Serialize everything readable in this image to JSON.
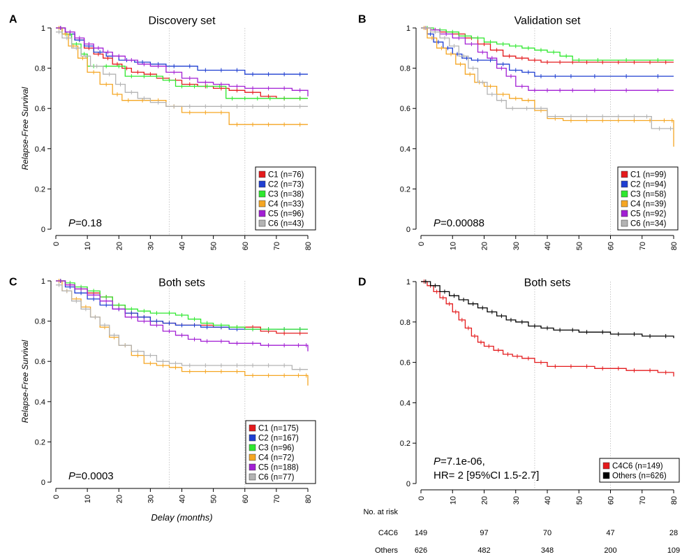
{
  "chart_data": [
    {
      "type": "line",
      "panel_label": "A",
      "title": "Discovery set",
      "ylabel": "Relapse-Free Survival",
      "xlabel": "",
      "xlim": [
        0,
        80
      ],
      "ylim": [
        0,
        1
      ],
      "x_ticks": [
        0,
        10,
        20,
        30,
        40,
        50,
        60,
        70,
        80
      ],
      "y_ticks": [
        "0",
        "0.2",
        "0.4",
        "0.6",
        "0.8",
        "1"
      ],
      "reference_lines_x": [
        36,
        60
      ],
      "pvalue_prefix": "P",
      "pvalue_text": "=0.18",
      "hr_text": "",
      "legend_position": "bottom-right",
      "series": [
        {
          "name": "C1 (n=76)",
          "color": "#e41a1c",
          "x": [
            0,
            3,
            6,
            9,
            12,
            15,
            18,
            21,
            24,
            28,
            32,
            36,
            40,
            45,
            50,
            55,
            60,
            65,
            70,
            75,
            80
          ],
          "y": [
            1,
            0.97,
            0.94,
            0.9,
            0.87,
            0.85,
            0.82,
            0.8,
            0.78,
            0.77,
            0.75,
            0.74,
            0.72,
            0.71,
            0.7,
            0.69,
            0.68,
            0.66,
            0.65,
            0.65,
            0.65
          ]
        },
        {
          "name": "C2 (n=73)",
          "color": "#1f3fd1",
          "x": [
            0,
            3,
            6,
            9,
            12,
            16,
            20,
            25,
            30,
            35,
            40,
            45,
            50,
            55,
            60,
            65,
            70,
            75,
            80
          ],
          "y": [
            1,
            0.97,
            0.94,
            0.91,
            0.88,
            0.86,
            0.84,
            0.83,
            0.82,
            0.81,
            0.81,
            0.79,
            0.79,
            0.79,
            0.77,
            0.77,
            0.77,
            0.77,
            0.77
          ]
        },
        {
          "name": "C3 (n=38)",
          "color": "#2ee82e",
          "x": [
            0,
            2,
            5,
            8,
            10,
            14,
            18,
            22,
            26,
            30,
            34,
            38,
            42,
            46,
            50,
            54,
            58,
            62,
            66,
            70,
            75,
            80
          ],
          "y": [
            1,
            0.97,
            0.92,
            0.87,
            0.81,
            0.81,
            0.81,
            0.76,
            0.76,
            0.76,
            0.74,
            0.71,
            0.71,
            0.71,
            0.71,
            0.65,
            0.65,
            0.65,
            0.65,
            0.65,
            0.65,
            0.65
          ]
        },
        {
          "name": "C4 (n=33)",
          "color": "#f5a623",
          "x": [
            0,
            2,
            4,
            7,
            10,
            14,
            18,
            21,
            25,
            30,
            35,
            40,
            45,
            50,
            55,
            60,
            65,
            70,
            75,
            80
          ],
          "y": [
            1,
            0.97,
            0.91,
            0.85,
            0.78,
            0.72,
            0.67,
            0.64,
            0.64,
            0.64,
            0.61,
            0.58,
            0.58,
            0.58,
            0.52,
            0.52,
            0.52,
            0.52,
            0.52,
            0.52
          ]
        },
        {
          "name": "C5 (n=96)",
          "color": "#a21fd4",
          "x": [
            0,
            3,
            6,
            9,
            12,
            15,
            18,
            22,
            26,
            30,
            35,
            40,
            45,
            50,
            55,
            60,
            65,
            70,
            75,
            80
          ],
          "y": [
            1,
            0.98,
            0.95,
            0.92,
            0.9,
            0.88,
            0.86,
            0.84,
            0.82,
            0.81,
            0.78,
            0.75,
            0.73,
            0.72,
            0.71,
            0.7,
            0.7,
            0.7,
            0.69,
            0.66
          ]
        },
        {
          "name": "C6 (n=43)",
          "color": "#b3b3b3",
          "x": [
            0,
            2,
            5,
            8,
            11,
            15,
            19,
            22,
            26,
            30,
            35,
            40,
            45,
            50,
            55,
            60,
            65,
            70,
            75,
            80
          ],
          "y": [
            0.98,
            0.95,
            0.9,
            0.86,
            0.81,
            0.77,
            0.72,
            0.68,
            0.65,
            0.63,
            0.61,
            0.61,
            0.61,
            0.61,
            0.61,
            0.61,
            0.61,
            0.61,
            0.61,
            0.61
          ]
        }
      ]
    },
    {
      "type": "line",
      "panel_label": "B",
      "title": "Validation set",
      "ylabel": "",
      "xlabel": "",
      "xlim": [
        0,
        80
      ],
      "ylim": [
        0,
        1
      ],
      "x_ticks": [
        0,
        10,
        20,
        30,
        40,
        50,
        60,
        70,
        80
      ],
      "y_ticks": [
        "0",
        "0.2",
        "0.4",
        "0.6",
        "0.8",
        "1"
      ],
      "reference_lines_x": [
        36,
        60
      ],
      "pvalue_prefix": "P",
      "pvalue_text": "=0.00088",
      "hr_text": "",
      "legend_position": "bottom-right",
      "series": [
        {
          "name": "C1 (n=99)",
          "color": "#e41a1c",
          "x": [
            0,
            3,
            6,
            10,
            14,
            18,
            22,
            26,
            30,
            34,
            38,
            42,
            46,
            50,
            55,
            60,
            65,
            70,
            75,
            80
          ],
          "y": [
            1,
            0.99,
            0.98,
            0.97,
            0.95,
            0.92,
            0.89,
            0.86,
            0.85,
            0.84,
            0.83,
            0.83,
            0.83,
            0.83,
            0.83,
            0.83,
            0.83,
            0.83,
            0.83,
            0.83
          ]
        },
        {
          "name": "C2 (n=94)",
          "color": "#1f3fd1",
          "x": [
            0,
            2,
            4,
            7,
            10,
            13,
            16,
            20,
            24,
            28,
            32,
            36,
            40,
            45,
            50,
            60,
            70,
            80
          ],
          "y": [
            1,
            0.97,
            0.93,
            0.9,
            0.87,
            0.85,
            0.84,
            0.84,
            0.82,
            0.79,
            0.78,
            0.76,
            0.76,
            0.76,
            0.76,
            0.76,
            0.76,
            0.76
          ]
        },
        {
          "name": "C3 (n=58)",
          "color": "#2ee82e",
          "x": [
            0,
            4,
            8,
            12,
            16,
            20,
            24,
            28,
            32,
            36,
            40,
            44,
            48,
            52,
            60,
            70,
            80
          ],
          "y": [
            1,
            0.99,
            0.98,
            0.96,
            0.95,
            0.93,
            0.92,
            0.91,
            0.9,
            0.89,
            0.88,
            0.86,
            0.84,
            0.84,
            0.84,
            0.84,
            0.84
          ]
        },
        {
          "name": "C4 (n=39)",
          "color": "#f5a623",
          "x": [
            0,
            2,
            5,
            8,
            11,
            14,
            17,
            20,
            24,
            28,
            32,
            36,
            40,
            45,
            50,
            55,
            60,
            65,
            70,
            75,
            79,
            80
          ],
          "y": [
            1,
            0.95,
            0.9,
            0.87,
            0.82,
            0.77,
            0.73,
            0.71,
            0.67,
            0.65,
            0.64,
            0.59,
            0.55,
            0.54,
            0.54,
            0.54,
            0.54,
            0.54,
            0.54,
            0.54,
            0.54,
            0.41
          ]
        },
        {
          "name": "C5 (n=92)",
          "color": "#a21fd4",
          "x": [
            0,
            3,
            6,
            10,
            14,
            18,
            21,
            24,
            27,
            30,
            34,
            38,
            42,
            46,
            50,
            60,
            70,
            80
          ],
          "y": [
            1,
            0.99,
            0.97,
            0.95,
            0.92,
            0.88,
            0.85,
            0.8,
            0.76,
            0.71,
            0.69,
            0.69,
            0.69,
            0.69,
            0.69,
            0.69,
            0.69,
            0.69
          ]
        },
        {
          "name": "C6 (n=34)",
          "color": "#b3b3b3",
          "x": [
            0,
            3,
            6,
            9,
            12,
            15,
            18,
            21,
            24,
            27,
            31,
            36,
            40,
            45,
            50,
            55,
            60,
            65,
            70,
            73,
            78,
            80
          ],
          "y": [
            1,
            0.98,
            0.95,
            0.91,
            0.86,
            0.8,
            0.73,
            0.67,
            0.64,
            0.6,
            0.6,
            0.6,
            0.56,
            0.56,
            0.56,
            0.56,
            0.56,
            0.56,
            0.56,
            0.5,
            0.5,
            0.5
          ]
        }
      ]
    },
    {
      "type": "line",
      "panel_label": "C",
      "title": "Both sets",
      "ylabel": "Relapse-Free Survival",
      "xlabel": "Delay (months)",
      "xlim": [
        0,
        80
      ],
      "ylim": [
        0,
        1
      ],
      "x_ticks": [
        0,
        10,
        20,
        30,
        40,
        50,
        60,
        70,
        80
      ],
      "y_ticks": [
        "0",
        "0.2",
        "0.4",
        "0.6",
        "0.8",
        "1"
      ],
      "reference_lines_x": [
        36,
        60
      ],
      "pvalue_prefix": "P",
      "pvalue_text": "=0.0003",
      "hr_text": "",
      "legend_position": "bottom-right",
      "series": [
        {
          "name": "C1 (n=175)",
          "color": "#e41a1c",
          "x": [
            0,
            3,
            6,
            10,
            14,
            18,
            22,
            26,
            30,
            34,
            38,
            42,
            46,
            50,
            55,
            60,
            65,
            70,
            75,
            80
          ],
          "y": [
            1,
            0.98,
            0.96,
            0.94,
            0.92,
            0.88,
            0.84,
            0.82,
            0.8,
            0.79,
            0.78,
            0.78,
            0.78,
            0.77,
            0.77,
            0.77,
            0.75,
            0.74,
            0.74,
            0.74
          ]
        },
        {
          "name": "C2 (n=167)",
          "color": "#1f3fd1",
          "x": [
            0,
            3,
            6,
            10,
            14,
            18,
            22,
            26,
            30,
            34,
            38,
            42,
            46,
            50,
            55,
            60,
            65,
            70,
            75,
            80
          ],
          "y": [
            1,
            0.97,
            0.94,
            0.91,
            0.88,
            0.86,
            0.84,
            0.82,
            0.8,
            0.79,
            0.78,
            0.78,
            0.77,
            0.77,
            0.76,
            0.76,
            0.76,
            0.76,
            0.76,
            0.76
          ]
        },
        {
          "name": "C3 (n=96)",
          "color": "#2ee82e",
          "x": [
            0,
            3,
            6,
            10,
            14,
            18,
            22,
            26,
            30,
            34,
            38,
            42,
            46,
            50,
            55,
            60,
            65,
            70,
            75,
            80
          ],
          "y": [
            1,
            0.99,
            0.97,
            0.95,
            0.92,
            0.88,
            0.86,
            0.85,
            0.84,
            0.84,
            0.83,
            0.81,
            0.79,
            0.78,
            0.77,
            0.76,
            0.76,
            0.76,
            0.76,
            0.76
          ]
        },
        {
          "name": "C4 (n=72)",
          "color": "#f5a623",
          "x": [
            0,
            2,
            5,
            8,
            11,
            14,
            17,
            20,
            24,
            28,
            32,
            36,
            40,
            45,
            50,
            55,
            60,
            65,
            70,
            75,
            79,
            80
          ],
          "y": [
            1,
            0.95,
            0.91,
            0.87,
            0.82,
            0.77,
            0.72,
            0.68,
            0.63,
            0.59,
            0.58,
            0.57,
            0.55,
            0.55,
            0.55,
            0.55,
            0.53,
            0.53,
            0.53,
            0.53,
            0.53,
            0.48
          ]
        },
        {
          "name": "C5 (n=188)",
          "color": "#a21fd4",
          "x": [
            0,
            3,
            6,
            10,
            14,
            18,
            22,
            26,
            30,
            34,
            38,
            42,
            46,
            50,
            55,
            60,
            65,
            70,
            75,
            79,
            80
          ],
          "y": [
            1,
            0.98,
            0.96,
            0.93,
            0.9,
            0.86,
            0.82,
            0.8,
            0.78,
            0.75,
            0.73,
            0.71,
            0.7,
            0.7,
            0.69,
            0.69,
            0.68,
            0.68,
            0.68,
            0.68,
            0.65
          ]
        },
        {
          "name": "C6 (n=77)",
          "color": "#b3b3b3",
          "x": [
            0,
            2,
            5,
            8,
            11,
            14,
            17,
            20,
            24,
            28,
            32,
            36,
            40,
            45,
            50,
            55,
            60,
            65,
            70,
            75,
            80
          ],
          "y": [
            0.98,
            0.95,
            0.9,
            0.86,
            0.82,
            0.78,
            0.73,
            0.68,
            0.65,
            0.63,
            0.6,
            0.59,
            0.58,
            0.58,
            0.58,
            0.58,
            0.58,
            0.58,
            0.58,
            0.56,
            0.56
          ]
        }
      ]
    },
    {
      "type": "line",
      "panel_label": "D",
      "title": "Both sets",
      "ylabel": "",
      "xlabel": "",
      "xlim": [
        0,
        80
      ],
      "ylim": [
        0,
        1
      ],
      "x_ticks": [
        0,
        10,
        20,
        30,
        40,
        50,
        60,
        70,
        80
      ],
      "y_ticks": [
        "0",
        "0.2",
        "0.4",
        "0.6",
        "0.8",
        "1"
      ],
      "reference_lines_x": [
        36,
        60
      ],
      "pvalue_prefix": "P",
      "pvalue_text": "=7.1e-06,",
      "hr_text": "HR= 2 [95%CI 1.5-2.7]",
      "legend_position": "bottom-right",
      "series": [
        {
          "name": "C4C6 (n=149)",
          "color": "#e41a1c",
          "x": [
            0,
            2,
            4,
            6,
            8,
            10,
            12,
            14,
            16,
            18,
            20,
            23,
            26,
            29,
            32,
            36,
            40,
            45,
            50,
            55,
            60,
            65,
            70,
            75,
            80
          ],
          "y": [
            1,
            0.98,
            0.95,
            0.92,
            0.89,
            0.85,
            0.81,
            0.77,
            0.73,
            0.7,
            0.68,
            0.66,
            0.64,
            0.63,
            0.62,
            0.6,
            0.58,
            0.58,
            0.58,
            0.57,
            0.57,
            0.56,
            0.56,
            0.55,
            0.53
          ]
        },
        {
          "name": "Others (n=626)",
          "color": "#000000",
          "x": [
            0,
            3,
            6,
            9,
            12,
            15,
            18,
            21,
            24,
            27,
            30,
            34,
            38,
            42,
            46,
            50,
            55,
            60,
            65,
            70,
            75,
            80
          ],
          "y": [
            1,
            0.98,
            0.95,
            0.93,
            0.91,
            0.89,
            0.87,
            0.85,
            0.83,
            0.81,
            0.8,
            0.78,
            0.77,
            0.76,
            0.76,
            0.75,
            0.75,
            0.74,
            0.74,
            0.73,
            0.73,
            0.72
          ]
        }
      ]
    }
  ],
  "risk_table": {
    "header": "No. at risk",
    "x": [
      0,
      20,
      40,
      60,
      80
    ],
    "rows": [
      {
        "label": "C4C6",
        "values": [
          "149",
          "97",
          "70",
          "47",
          "28"
        ]
      },
      {
        "label": "Others",
        "values": [
          "626",
          "482",
          "348",
          "200",
          "109"
        ]
      }
    ]
  }
}
